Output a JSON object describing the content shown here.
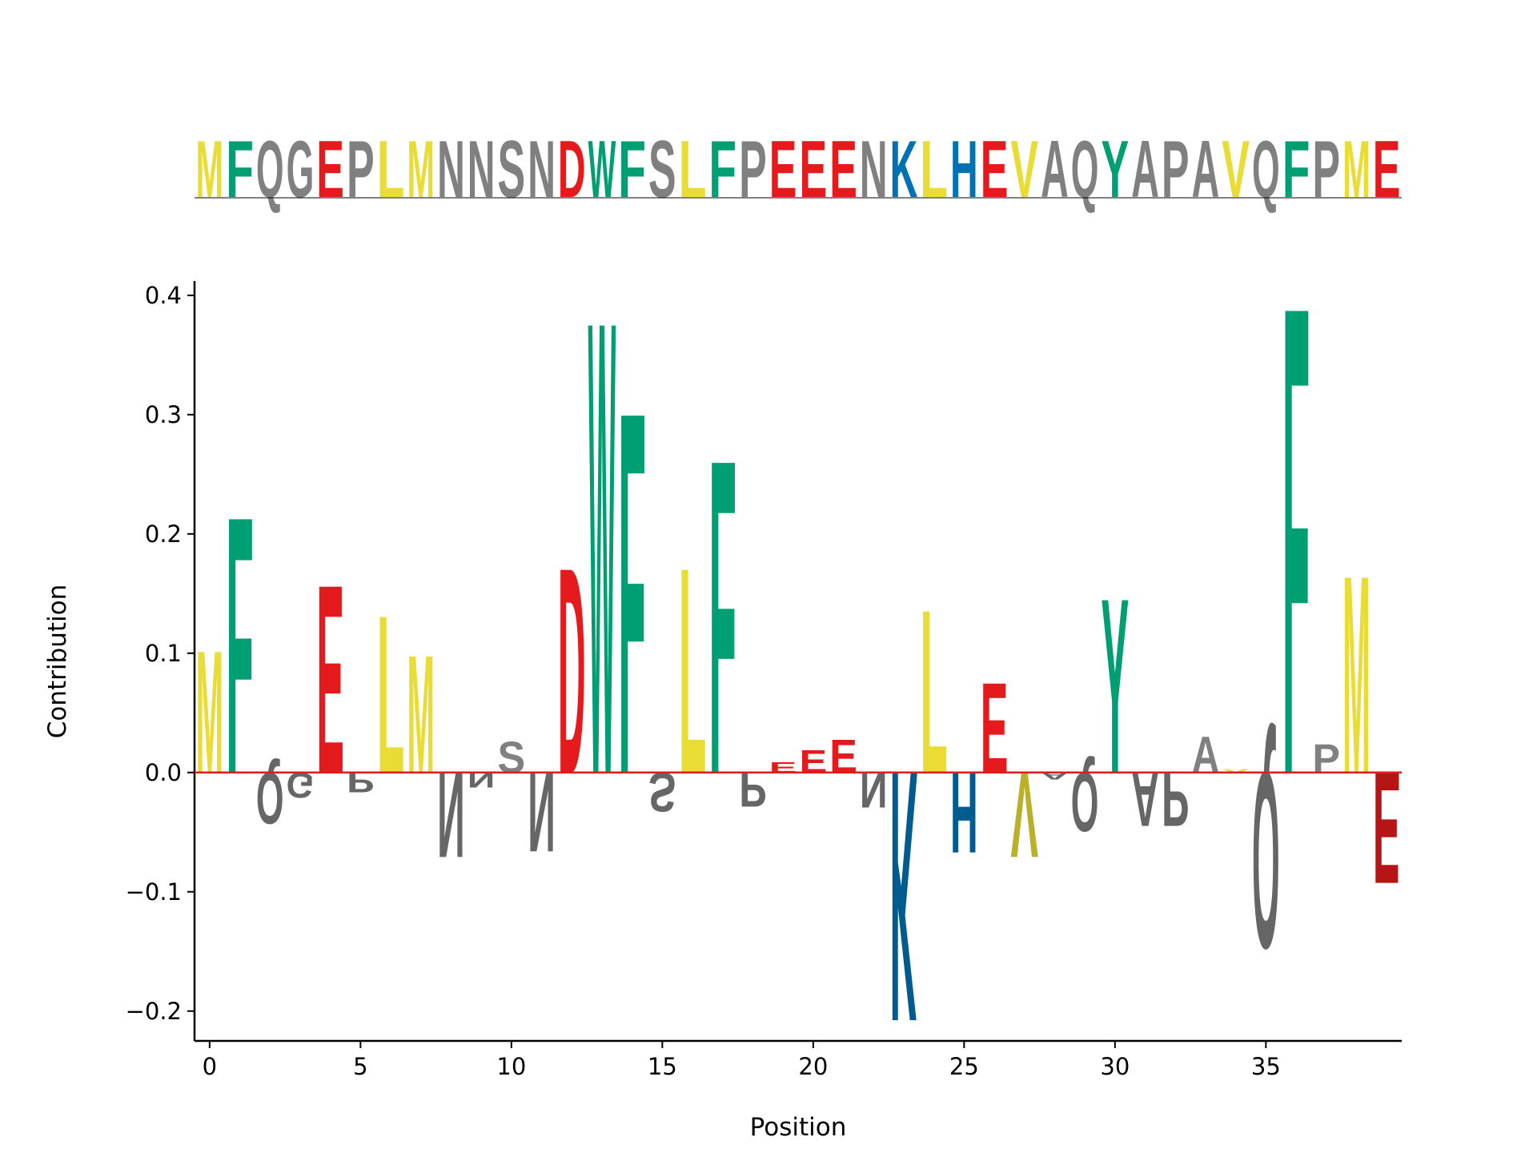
{
  "chart_data": {
    "type": "logo",
    "categories": [
      "M",
      "F",
      "Q",
      "G",
      "E",
      "P",
      "L",
      "M",
      "N",
      "N",
      "S",
      "N",
      "D",
      "W",
      "F",
      "S",
      "L",
      "F",
      "P",
      "E",
      "E",
      "E",
      "N",
      "K",
      "L",
      "H",
      "E",
      "V",
      "A",
      "Q",
      "Y",
      "A",
      "P",
      "A",
      "V",
      "Q",
      "F",
      "P",
      "M",
      "E"
    ],
    "values": [
      0.107,
      0.225,
      -0.045,
      -0.022,
      0.165,
      -0.017,
      0.138,
      0.103,
      -0.075,
      -0.013,
      0.027,
      -0.07,
      0.18,
      0.397,
      0.317,
      -0.034,
      0.18,
      0.275,
      -0.03,
      0.009,
      0.02,
      0.029,
      -0.031,
      -0.22,
      0.143,
      -0.071,
      0.079,
      -0.075,
      -0.006,
      -0.052,
      0.153,
      -0.047,
      -0.047,
      0.032,
      0.003,
      -0.155,
      0.41,
      0.025,
      0.173,
      -0.098
    ],
    "colors": {
      "M": "#e8dc35",
      "L": "#e8dc35",
      "V": "#e8dc35",
      "F": "#009e73",
      "W": "#009e73",
      "Y": "#009e73",
      "E": "#e41a1c",
      "D": "#e41a1c",
      "K": "#0072b2",
      "H": "#0072b2",
      "Q": "#808080",
      "G": "#808080",
      "P": "#808080",
      "N": "#808080",
      "S": "#808080",
      "A": "#808080"
    },
    "baseline_color": "#e41a1c",
    "xlabel": "Position",
    "ylabel": "Contribution",
    "xlim": [
      -0.5,
      39.5
    ],
    "xticks": [
      0,
      5,
      10,
      15,
      20,
      25,
      30,
      35
    ],
    "ylim": [
      -0.225,
      0.412
    ],
    "yticks": [
      {
        "value": -0.2,
        "label": "−0.2"
      },
      {
        "value": -0.1,
        "label": "−0.1"
      },
      {
        "value": 0,
        "label": "0.0"
      },
      0.1,
      0.2,
      0.3,
      0.4
    ]
  }
}
